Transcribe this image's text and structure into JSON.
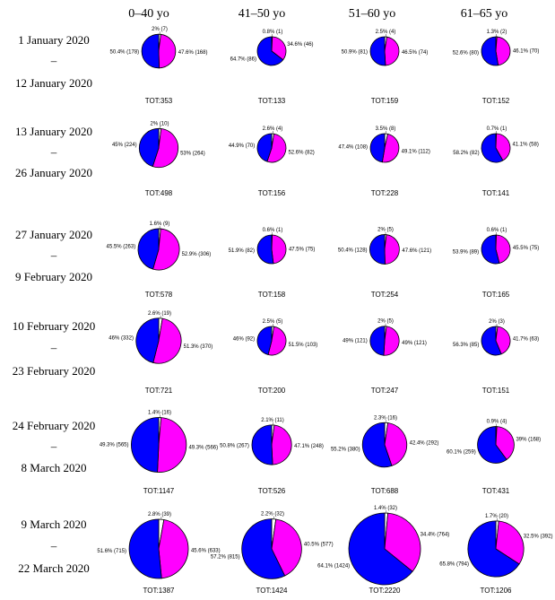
{
  "colors": {
    "male": "#ff00ff",
    "female": "#0000ff",
    "unknown": "#ffffff",
    "outline": "#000000"
  },
  "chart_data": {
    "type": "pie",
    "columns": [
      "0–40 yo",
      "41–50 yo",
      "51–60 yo",
      "61–65 yo"
    ],
    "rows": [
      {
        "line1": "1 January 2020",
        "sep": "–",
        "line2": "12 January 2020"
      },
      {
        "line1": "13 January 2020",
        "sep": "–",
        "line2": "26 January 2020"
      },
      {
        "line1": "27 January 2020",
        "sep": "–",
        "line2": "9 February 2020"
      },
      {
        "line1": "10 February 2020",
        "sep": "–",
        "line2": "23 February 2020"
      },
      {
        "line1": "24 February 2020",
        "sep": "–",
        "line2": "8 March 2020"
      },
      {
        "line1": "9 March 2020",
        "sep": "–",
        "line2": "22 March 2020"
      }
    ],
    "cells": [
      [
        {
          "total": "TOT:353",
          "slices": [
            {
              "value": 7,
              "label": "2% (7)"
            },
            {
              "value": 168,
              "label": "47.6% (168)"
            },
            {
              "value": 178,
              "label": "50.4% (178)"
            }
          ]
        },
        {
          "total": "TOT:133",
          "slices": [
            {
              "value": 1,
              "label": "0.8% (1)"
            },
            {
              "value": 46,
              "label": "34.6% (46)"
            },
            {
              "value": 86,
              "label": "64.7% (86)"
            }
          ]
        },
        {
          "total": "TOT:159",
          "slices": [
            {
              "value": 4,
              "label": "2.5% (4)"
            },
            {
              "value": 74,
              "label": "46.5% (74)"
            },
            {
              "value": 81,
              "label": "50.9% (81)"
            }
          ]
        },
        {
          "total": "TOT:152",
          "slices": [
            {
              "value": 2,
              "label": "1.3% (2)"
            },
            {
              "value": 70,
              "label": "46.1% (70)"
            },
            {
              "value": 80,
              "label": "52.6% (80)"
            }
          ]
        }
      ],
      [
        {
          "total": "TOT:498",
          "slices": [
            {
              "value": 10,
              "label": "2% (10)"
            },
            {
              "value": 264,
              "label": "53% (264)"
            },
            {
              "value": 224,
              "label": "45% (224)"
            }
          ]
        },
        {
          "total": "TOT:156",
          "slices": [
            {
              "value": 4,
              "label": "2.6% (4)"
            },
            {
              "value": 82,
              "label": "52.6% (82)"
            },
            {
              "value": 70,
              "label": "44.9% (70)"
            }
          ]
        },
        {
          "total": "TOT:228",
          "slices": [
            {
              "value": 8,
              "label": "3.5% (8)"
            },
            {
              "value": 112,
              "label": "49.1% (112)"
            },
            {
              "value": 108,
              "label": "47.4% (108)"
            }
          ]
        },
        {
          "total": "TOT:141",
          "slices": [
            {
              "value": 1,
              "label": "0.7% (1)"
            },
            {
              "value": 58,
              "label": "41.1% (58)"
            },
            {
              "value": 82,
              "label": "58.2% (82)"
            }
          ]
        }
      ],
      [
        {
          "total": "TOT:578",
          "slices": [
            {
              "value": 9,
              "label": "1.6% (9)"
            },
            {
              "value": 306,
              "label": "52.9% (306)"
            },
            {
              "value": 263,
              "label": "45.5% (263)"
            }
          ]
        },
        {
          "total": "TOT:158",
          "slices": [
            {
              "value": 1,
              "label": "0.6% (1)"
            },
            {
              "value": 75,
              "label": "47.5% (75)"
            },
            {
              "value": 82,
              "label": "51.9% (82)"
            }
          ]
        },
        {
          "total": "TOT:254",
          "slices": [
            {
              "value": 5,
              "label": "2% (5)"
            },
            {
              "value": 121,
              "label": "47.6% (121)"
            },
            {
              "value": 128,
              "label": "50.4% (128)"
            }
          ]
        },
        {
          "total": "TOT:165",
          "slices": [
            {
              "value": 1,
              "label": "0.6% (1)"
            },
            {
              "value": 75,
              "label": "45.5% (75)"
            },
            {
              "value": 89,
              "label": "53.9% (89)"
            }
          ]
        }
      ],
      [
        {
          "total": "TOT:721",
          "slices": [
            {
              "value": 19,
              "label": "2.6% (19)"
            },
            {
              "value": 370,
              "label": "51.3% (370)"
            },
            {
              "value": 332,
              "label": "46% (332)"
            }
          ]
        },
        {
          "total": "TOT:200",
          "slices": [
            {
              "value": 5,
              "label": "2.5% (5)"
            },
            {
              "value": 103,
              "label": "51.5% (103)"
            },
            {
              "value": 92,
              "label": "46% (92)"
            }
          ]
        },
        {
          "total": "TOT:247",
          "slices": [
            {
              "value": 5,
              "label": "2% (5)"
            },
            {
              "value": 121,
              "label": "49% (121)"
            },
            {
              "value": 121,
              "label": "49% (121)"
            }
          ]
        },
        {
          "total": "TOT:151",
          "slices": [
            {
              "value": 3,
              "label": "2% (3)"
            },
            {
              "value": 63,
              "label": "41.7% (63)"
            },
            {
              "value": 85,
              "label": "56.3% (85)"
            }
          ]
        }
      ],
      [
        {
          "total": "TOT:1147",
          "slices": [
            {
              "value": 16,
              "label": "1.4% (16)"
            },
            {
              "value": 566,
              "label": "49.3% (566)"
            },
            {
              "value": 565,
              "label": "49.3% (565)"
            }
          ]
        },
        {
          "total": "TOT:526",
          "slices": [
            {
              "value": 11,
              "label": "2.1% (11)"
            },
            {
              "value": 248,
              "label": "47.1% (248)"
            },
            {
              "value": 267,
              "label": "50.8% (267)"
            }
          ]
        },
        {
          "total": "TOT:688",
          "slices": [
            {
              "value": 16,
              "label": "2.3% (16)"
            },
            {
              "value": 292,
              "label": "42.4% (292)"
            },
            {
              "value": 380,
              "label": "55.2% (380)"
            }
          ]
        },
        {
          "total": "TOT:431",
          "slices": [
            {
              "value": 4,
              "label": "0.9% (4)"
            },
            {
              "value": 168,
              "label": "39% (168)"
            },
            {
              "value": 259,
              "label": "60.1% (259)"
            }
          ]
        }
      ],
      [
        {
          "total": "TOT:1387",
          "slices": [
            {
              "value": 39,
              "label": "2.8% (39)"
            },
            {
              "value": 633,
              "label": "45.6% (633)"
            },
            {
              "value": 715,
              "label": "51.6% (715)"
            }
          ]
        },
        {
          "total": "TOT:1424",
          "slices": [
            {
              "value": 32,
              "label": "2.2% (32)"
            },
            {
              "value": 577,
              "label": "40.5% (577)"
            },
            {
              "value": 815,
              "label": "57.2% (815)"
            }
          ]
        },
        {
          "total": "TOT:2220",
          "slices": [
            {
              "value": 32,
              "label": "1.4% (32)"
            },
            {
              "value": 764,
              "label": "34.4% (764)"
            },
            {
              "value": 1424,
              "label": "64.1% (1424)"
            }
          ]
        },
        {
          "total": "TOT:1206",
          "slices": [
            {
              "value": 20,
              "label": "1.7% (20)"
            },
            {
              "value": 392,
              "label": "32.5% (392)"
            },
            {
              "value": 794,
              "label": "65.8% (794)"
            }
          ]
        }
      ]
    ]
  }
}
